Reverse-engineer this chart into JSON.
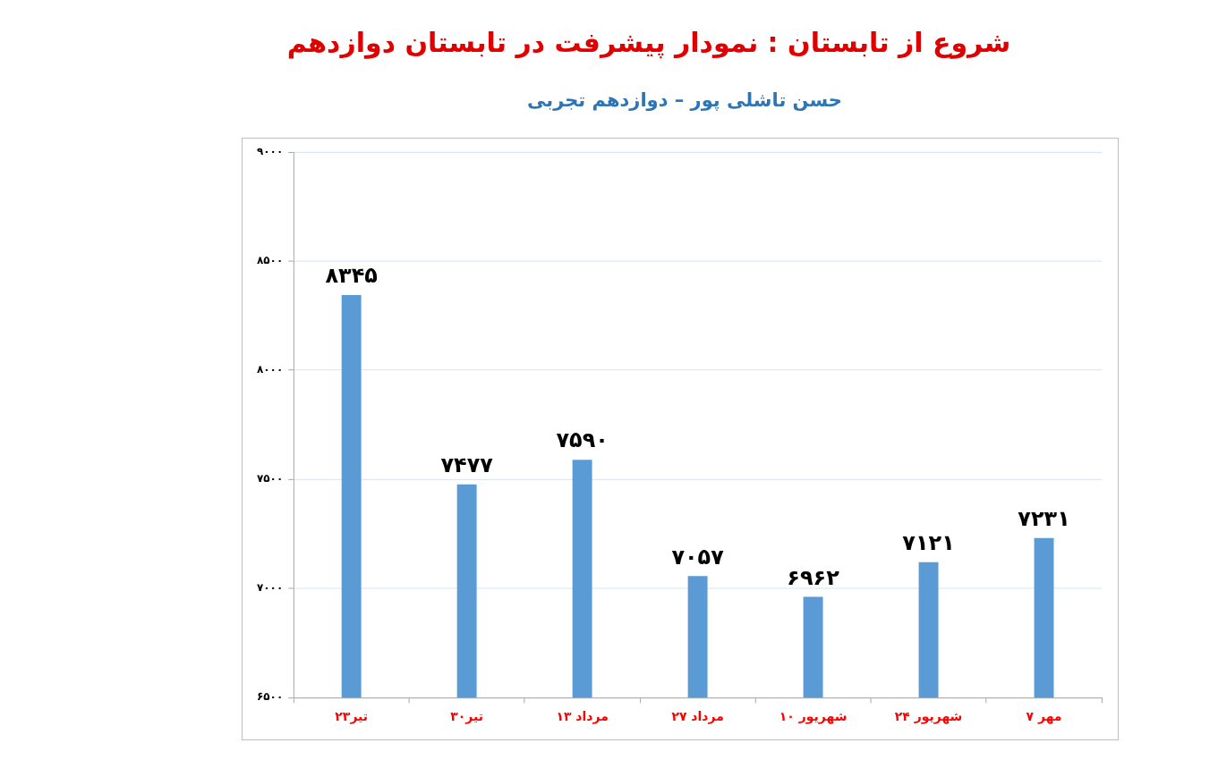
{
  "chart_data": {
    "type": "bar",
    "title": "شروع از تابستان : نمودار پیشرفت در تابستان دوازدهم",
    "subtitle": "حسن تاشلی پور – دوازدهم تجربی",
    "categories": [
      "۲۳تیر",
      "۳۰تیر",
      "۱۳ مرداد",
      "۲۷ مرداد",
      "۱۰ شهریور",
      "۲۴ شهریور",
      "۷ مهر"
    ],
    "values": [
      8345,
      7477,
      7590,
      7057,
      6962,
      7121,
      7231
    ],
    "value_labels": [
      "۸۳۴۵",
      "۷۴۷۷",
      "۷۵۹۰",
      "۷۰۵۷",
      "۶۹۶۲",
      "۷۱۲۱",
      "۷۲۳۱"
    ],
    "color": "#5b9bd5",
    "ylim": [
      6500,
      9000
    ],
    "yticks": [
      {
        "value": 6500,
        "label": "۶۵۰۰"
      },
      {
        "value": 7000,
        "label": "۷۰۰۰"
      },
      {
        "value": 7500,
        "label": "۷۵۰۰"
      },
      {
        "value": 8000,
        "label": "۸۰۰۰"
      },
      {
        "value": 8500,
        "label": "۸۵۰۰"
      },
      {
        "value": 9000,
        "label": "۹۰۰۰"
      }
    ],
    "grid": "y",
    "legend": false
  }
}
